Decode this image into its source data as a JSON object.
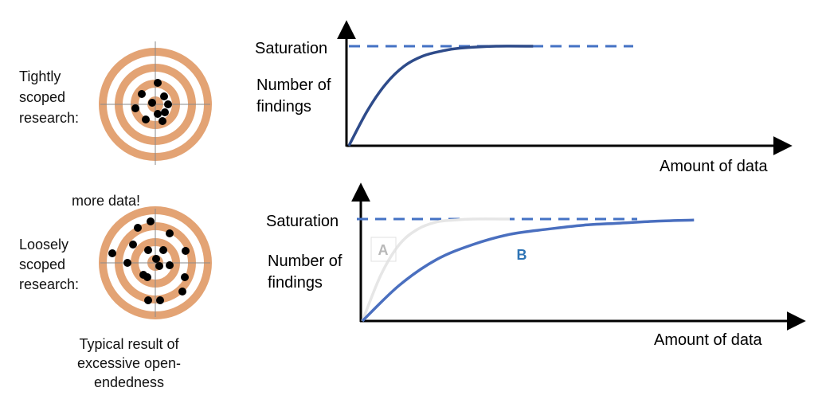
{
  "colors": {
    "ring": "#E3A374",
    "crosshair": "#8a8a8a",
    "dot": "#000000",
    "saturation_line": "#4472C4",
    "curve_top": "#2E4B8A",
    "curve_b": "#4A6FBF",
    "curve_a": "#e6e6e6",
    "label_a": "#b8b8b8",
    "label_b": "#2E74B5"
  },
  "top": {
    "label_lines": [
      "Tightly",
      "scoped",
      "research:"
    ],
    "saturation": "Saturation",
    "ylabel_lines": [
      "Number of",
      "findings"
    ],
    "xlabel": "Amount of data"
  },
  "bottom": {
    "more_data": "more data!",
    "label_lines": [
      "Loosely",
      "scoped",
      "research:"
    ],
    "caption_lines": [
      "Typical result of",
      "excessive open-",
      "endedness"
    ],
    "saturation": "Saturation",
    "ylabel_lines": [
      "Number of",
      "findings"
    ],
    "xlabel": "Amount of data",
    "curve_a_label": "A",
    "curve_b_label": "B"
  },
  "chart_data": [
    {
      "type": "line",
      "title": "",
      "xlabel": "Amount of data",
      "ylabel": "Number of findings",
      "annotations": [
        "Saturation"
      ],
      "series": [
        {
          "name": "findings",
          "x": [
            0,
            0.5,
            1,
            1.5,
            2,
            2.5,
            3,
            4,
            5
          ],
          "y": [
            0,
            0.35,
            0.62,
            0.8,
            0.9,
            0.95,
            0.98,
            1.0,
            1.0
          ]
        }
      ],
      "saturation_level": 1.0,
      "xlim": [
        0,
        12
      ],
      "ylim": [
        0,
        1.2
      ]
    },
    {
      "type": "line",
      "title": "",
      "xlabel": "Amount of data",
      "ylabel": "Number of findings",
      "annotations": [
        "Saturation"
      ],
      "series": [
        {
          "name": "A",
          "x": [
            0,
            0.5,
            1,
            1.5,
            2,
            2.5,
            3,
            4
          ],
          "y": [
            0,
            0.45,
            0.75,
            0.9,
            0.97,
            0.99,
            1.0,
            1.0
          ]
        },
        {
          "name": "B",
          "x": [
            0,
            1,
            2,
            3,
            4,
            5,
            6,
            7,
            8,
            9
          ],
          "y": [
            0,
            0.35,
            0.6,
            0.75,
            0.85,
            0.9,
            0.94,
            0.96,
            0.98,
            0.99
          ]
        }
      ],
      "saturation_level": 1.0,
      "xlim": [
        0,
        12
      ],
      "ylim": [
        0,
        1.2
      ]
    }
  ]
}
